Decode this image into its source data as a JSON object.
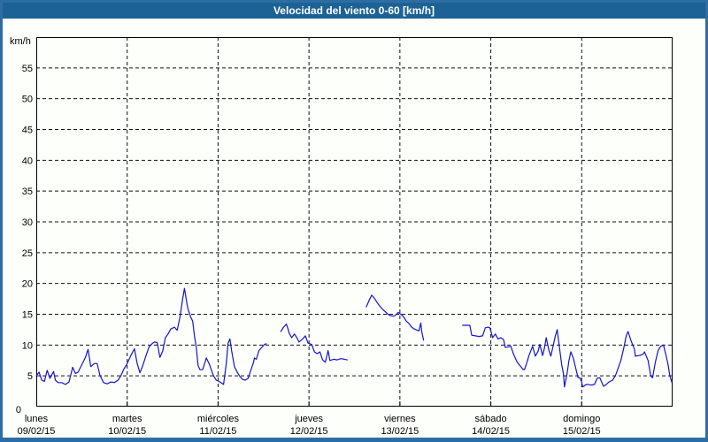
{
  "window": {
    "title": "Velocidad del viento 0-60 [km/h]"
  },
  "colors": {
    "frame": "#2e6da4",
    "titlebar": "#1c6294",
    "title_text": "#ffffff",
    "plot_background": "#fdfffb",
    "axis": "#000000",
    "grid": "#111111",
    "line": "#1414cc",
    "label": "#000000"
  },
  "chart_data": {
    "type": "line",
    "title": "Velocidad del viento 0-60 [km/h]",
    "y_unit_label": "km/h",
    "ylim": [
      0,
      60
    ],
    "xlim_days": [
      0,
      7
    ],
    "grid": "dashed",
    "legend": "none",
    "yticks": [
      0,
      5,
      10,
      15,
      20,
      25,
      30,
      35,
      40,
      45,
      50,
      55
    ],
    "days": [
      {
        "name": "lunes",
        "date": "09/02/15"
      },
      {
        "name": "martes",
        "date": "10/02/15"
      },
      {
        "name": "miércoles",
        "date": "11/02/15"
      },
      {
        "name": "jueves",
        "date": "12/02/15"
      },
      {
        "name": "viernes",
        "date": "13/02/15"
      },
      {
        "name": "sábado",
        "date": "14/02/15"
      },
      {
        "name": "domingo",
        "date": "15/02/15"
      }
    ],
    "series": [
      {
        "name": "wind-speed-kmh",
        "note": "x in days since lunes 00:00, y in km/h; separate segments = data gaps",
        "segments": [
          {
            "points": [
              [
                0.0,
                5.0
              ],
              [
                0.03,
                5.6
              ],
              [
                0.06,
                4.3
              ],
              [
                0.09,
                4.1
              ],
              [
                0.12,
                5.9
              ],
              [
                0.15,
                4.6
              ],
              [
                0.19,
                5.7
              ],
              [
                0.21,
                4.3
              ],
              [
                0.24,
                3.9
              ],
              [
                0.28,
                3.9
              ],
              [
                0.32,
                3.6
              ],
              [
                0.36,
                4.0
              ],
              [
                0.4,
                6.4
              ],
              [
                0.43,
                5.4
              ],
              [
                0.46,
                5.6
              ],
              [
                0.5,
                6.8
              ],
              [
                0.54,
                8.0
              ],
              [
                0.57,
                9.3
              ],
              [
                0.6,
                6.5
              ],
              [
                0.64,
                7.0
              ],
              [
                0.67,
                7.0
              ],
              [
                0.7,
                5.1
              ],
              [
                0.74,
                3.9
              ],
              [
                0.78,
                3.7
              ],
              [
                0.82,
                4.0
              ],
              [
                0.86,
                3.9
              ],
              [
                0.9,
                4.3
              ],
              [
                0.93,
                5.0
              ],
              [
                0.96,
                6.0
              ],
              [
                1.0,
                7.0
              ],
              [
                1.04,
                8.3
              ],
              [
                1.08,
                9.4
              ],
              [
                1.11,
                7.0
              ],
              [
                1.14,
                5.5
              ],
              [
                1.17,
                6.6
              ],
              [
                1.2,
                8.0
              ],
              [
                1.24,
                9.7
              ],
              [
                1.28,
                10.3
              ],
              [
                1.3,
                10.5
              ],
              [
                1.33,
                10.4
              ],
              [
                1.36,
                8.0
              ],
              [
                1.39,
                9.0
              ],
              [
                1.42,
                11.2
              ],
              [
                1.45,
                11.8
              ],
              [
                1.48,
                12.6
              ],
              [
                1.52,
                12.9
              ],
              [
                1.55,
                12.4
              ],
              [
                1.58,
                14.5
              ],
              [
                1.61,
                17.5
              ],
              [
                1.63,
                19.2
              ],
              [
                1.66,
                16.5
              ],
              [
                1.67,
                15.8
              ],
              [
                1.7,
                14.5
              ],
              [
                1.72,
                13.9
              ],
              [
                1.74,
                11.5
              ],
              [
                1.76,
                9.6
              ],
              [
                1.78,
                6.7
              ],
              [
                1.8,
                6.0
              ],
              [
                1.83,
                6.0
              ],
              [
                1.87,
                7.9
              ],
              [
                1.9,
                7.0
              ],
              [
                1.92,
                6.2
              ],
              [
                1.95,
                5.0
              ],
              [
                1.98,
                4.3
              ],
              [
                2.01,
                4.1
              ],
              [
                2.03,
                3.9
              ],
              [
                2.06,
                3.6
              ],
              [
                2.09,
                7.0
              ],
              [
                2.11,
                10.3
              ],
              [
                2.13,
                11.0
              ],
              [
                2.15,
                9.0
              ],
              [
                2.18,
                6.5
              ],
              [
                2.21,
                5.6
              ],
              [
                2.24,
                4.9
              ],
              [
                2.27,
                4.4
              ],
              [
                2.3,
                4.3
              ],
              [
                2.33,
                4.6
              ],
              [
                2.36,
                5.9
              ],
              [
                2.39,
                7.2
              ],
              [
                2.4,
                7.9
              ],
              [
                2.42,
                7.7
              ],
              [
                2.45,
                9.1
              ],
              [
                2.48,
                9.6
              ],
              [
                2.51,
                10.1
              ],
              [
                2.53,
                10.2
              ]
            ]
          },
          {
            "points": [
              [
                2.69,
                12.2
              ],
              [
                2.72,
                12.9
              ],
              [
                2.75,
                13.4
              ],
              [
                2.77,
                12.6
              ],
              [
                2.78,
                12.0
              ],
              [
                2.81,
                11.2
              ],
              [
                2.84,
                11.8
              ],
              [
                2.87,
                11.1
              ],
              [
                2.89,
                10.5
              ],
              [
                2.93,
                11.0
              ],
              [
                2.96,
                11.5
              ],
              [
                2.99,
                10.3
              ],
              [
                3.03,
                10.1
              ],
              [
                3.06,
                8.9
              ],
              [
                3.09,
                8.6
              ],
              [
                3.12,
                8.9
              ],
              [
                3.15,
                7.6
              ],
              [
                3.18,
                7.2
              ],
              [
                3.21,
                9.1
              ],
              [
                3.23,
                7.5
              ],
              [
                3.27,
                7.7
              ],
              [
                3.31,
                7.6
              ],
              [
                3.35,
                7.8
              ],
              [
                3.39,
                7.7
              ],
              [
                3.42,
                7.6
              ]
            ]
          },
          {
            "points": [
              [
                3.63,
                16.2
              ],
              [
                3.66,
                17.2
              ],
              [
                3.69,
                18.1
              ],
              [
                3.72,
                17.6
              ],
              [
                3.75,
                16.9
              ],
              [
                3.77,
                16.5
              ],
              [
                3.81,
                15.8
              ],
              [
                3.84,
                15.4
              ],
              [
                3.87,
                15.0
              ],
              [
                3.89,
                14.8
              ],
              [
                3.92,
                14.7
              ],
              [
                3.95,
                14.8
              ],
              [
                3.98,
                15.3
              ],
              [
                4.01,
                15.0
              ],
              [
                4.04,
                14.6
              ],
              [
                4.07,
                13.9
              ],
              [
                4.1,
                13.5
              ],
              [
                4.13,
                12.9
              ],
              [
                4.16,
                12.6
              ],
              [
                4.19,
                12.4
              ],
              [
                4.21,
                12.3
              ],
              [
                4.23,
                13.6
              ],
              [
                4.24,
                12.2
              ],
              [
                4.26,
                10.8
              ]
            ]
          },
          {
            "points": [
              [
                4.69,
                13.2
              ],
              [
                4.73,
                13.2
              ],
              [
                4.77,
                13.2
              ],
              [
                4.79,
                11.6
              ],
              [
                4.83,
                11.5
              ],
              [
                4.87,
                11.4
              ],
              [
                4.91,
                11.5
              ],
              [
                4.94,
                12.8
              ],
              [
                4.97,
                12.9
              ],
              [
                4.99,
                12.8
              ],
              [
                5.0,
                12.3
              ],
              [
                5.02,
                11.2
              ],
              [
                5.05,
                11.8
              ],
              [
                5.08,
                11.0
              ],
              [
                5.11,
                11.2
              ],
              [
                5.14,
                10.9
              ],
              [
                5.16,
                9.6
              ],
              [
                5.19,
                9.7
              ],
              [
                5.22,
                9.8
              ],
              [
                5.25,
                8.5
              ],
              [
                5.29,
                7.2
              ],
              [
                5.33,
                6.5
              ],
              [
                5.35,
                6.1
              ],
              [
                5.37,
                6.0
              ],
              [
                5.4,
                7.3
              ],
              [
                5.42,
                8.3
              ],
              [
                5.46,
                9.8
              ],
              [
                5.49,
                8.2
              ],
              [
                5.52,
                9.0
              ],
              [
                5.54,
                10.1
              ],
              [
                5.57,
                8.3
              ],
              [
                5.59,
                9.5
              ],
              [
                5.61,
                11.2
              ],
              [
                5.64,
                9.1
              ],
              [
                5.66,
                8.2
              ],
              [
                5.69,
                10.1
              ],
              [
                5.71,
                11.5
              ],
              [
                5.73,
                12.5
              ],
              [
                5.76,
                9.1
              ],
              [
                5.78,
                6.8
              ],
              [
                5.8,
                5.3
              ],
              [
                5.81,
                3.2
              ],
              [
                5.84,
                5.5
              ],
              [
                5.86,
                7.5
              ],
              [
                5.88,
                8.9
              ],
              [
                5.91,
                7.8
              ],
              [
                5.93,
                6.5
              ],
              [
                5.96,
                4.7
              ],
              [
                5.98,
                4.7
              ],
              [
                6.0,
                4.0
              ],
              [
                6.01,
                3.2
              ],
              [
                6.05,
                3.6
              ],
              [
                6.07,
                3.6
              ],
              [
                6.1,
                3.5
              ],
              [
                6.14,
                3.6
              ],
              [
                6.17,
                4.6
              ],
              [
                6.2,
                4.7
              ],
              [
                6.24,
                3.3
              ],
              [
                6.27,
                3.6
              ],
              [
                6.3,
                4.0
              ],
              [
                6.34,
                4.3
              ],
              [
                6.37,
                5.0
              ],
              [
                6.4,
                6.2
              ],
              [
                6.43,
                7.5
              ],
              [
                6.46,
                9.3
              ],
              [
                6.49,
                11.5
              ],
              [
                6.51,
                12.2
              ],
              [
                6.54,
                10.8
              ],
              [
                6.58,
                9.3
              ],
              [
                6.59,
                8.2
              ],
              [
                6.63,
                8.3
              ],
              [
                6.66,
                8.4
              ],
              [
                6.68,
                8.6
              ],
              [
                6.69,
                8.9
              ],
              [
                6.73,
                7.5
              ],
              [
                6.76,
                5.0
              ],
              [
                6.78,
                4.7
              ],
              [
                6.81,
                7.2
              ],
              [
                6.84,
                9.1
              ],
              [
                6.87,
                9.8
              ],
              [
                6.9,
                10.0
              ],
              [
                6.93,
                8.2
              ],
              [
                6.95,
                6.8
              ],
              [
                6.97,
                5.0
              ],
              [
                6.99,
                4.0
              ]
            ]
          }
        ]
      }
    ]
  }
}
